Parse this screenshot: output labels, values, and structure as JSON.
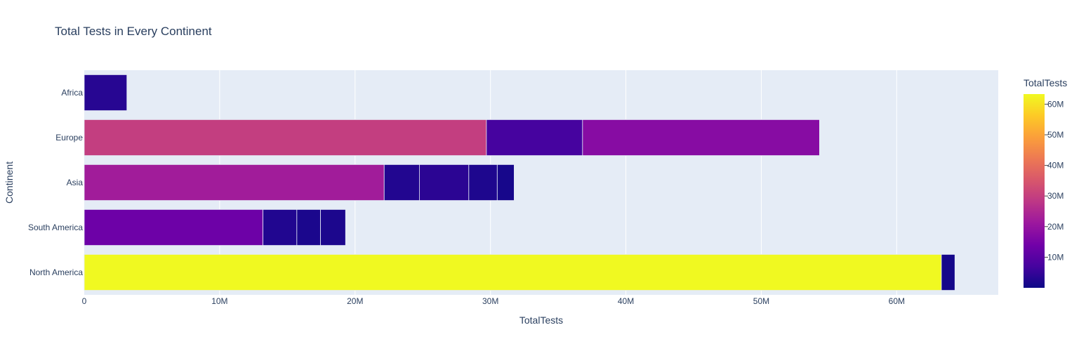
{
  "chart_data": {
    "type": "bar",
    "orientation": "horizontal",
    "barmode": "stack",
    "title": "Total Tests in Every Continent",
    "xlabel": "TotalTests",
    "ylabel": "Continent",
    "xlim": [
      0,
      67500000
    ],
    "x_ticks": [
      0,
      10000000,
      20000000,
      30000000,
      40000000,
      50000000,
      60000000
    ],
    "x_tick_labels": [
      "0",
      "10M",
      "20M",
      "30M",
      "40M",
      "50M",
      "60M"
    ],
    "categories": [
      "Africa",
      "Europe",
      "Asia",
      "South America",
      "North America"
    ],
    "bars": [
      {
        "category": "Africa",
        "segments": [
          3150000
        ]
      },
      {
        "category": "Europe",
        "segments": [
          29700000,
          7100000,
          17500000
        ]
      },
      {
        "category": "Asia",
        "segments": [
          22150000,
          2600000,
          3650000,
          2100000,
          1250000
        ]
      },
      {
        "category": "South America",
        "segments": [
          13200000,
          2500000,
          1750000,
          1850000
        ]
      },
      {
        "category": "North America",
        "segments": [
          63300000,
          1000000
        ]
      }
    ],
    "colorbar": {
      "title": "TotalTests",
      "range": [
        0,
        63300000
      ],
      "colorscale": [
        "#0d0887",
        "#46039f",
        "#7201a8",
        "#9c179e",
        "#bd3786",
        "#d8576b",
        "#ed7953",
        "#fb9f3a",
        "#fdca26",
        "#f0f921"
      ],
      "ticks": [
        10000000,
        20000000,
        30000000,
        40000000,
        50000000,
        60000000
      ],
      "tick_labels": [
        "10M",
        "20M",
        "30M",
        "40M",
        "50M",
        "60M"
      ]
    },
    "grid": true,
    "plot_bgcolor": "#e5ecf6"
  }
}
